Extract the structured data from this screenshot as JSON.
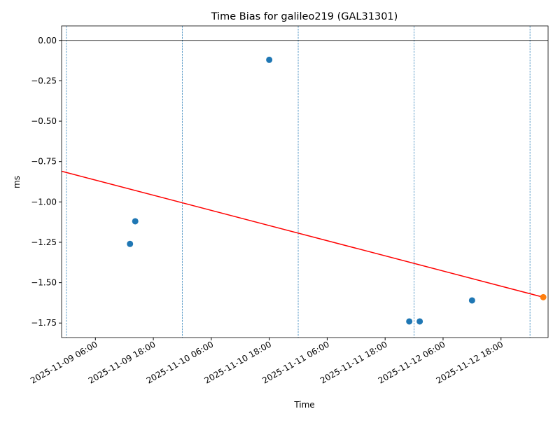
{
  "chart_data": {
    "type": "scatter",
    "title": "Time Bias for galileo219 (GAL31301)",
    "xlabel": "Time",
    "ylabel": "ms",
    "xlim": [
      "2025-11-08 23:00",
      "2025-11-13 03:45"
    ],
    "ylim": [
      -1.84,
      0.09
    ],
    "xticks": [
      "2025-11-09 06:00",
      "2025-11-09 18:00",
      "2025-11-10 06:00",
      "2025-11-10 18:00",
      "2025-11-11 06:00",
      "2025-11-11 18:00",
      "2025-11-12 06:00",
      "2025-11-12 18:00"
    ],
    "yticks": [
      {
        "value": 0,
        "label": "0.00"
      },
      {
        "value": -0.25,
        "label": "−0.25"
      },
      {
        "value": -0.5,
        "label": "−0.50"
      },
      {
        "value": -0.75,
        "label": "−0.75"
      },
      {
        "value": -1,
        "label": "−1.00"
      },
      {
        "value": -1.25,
        "label": "−1.25"
      },
      {
        "value": -1.5,
        "label": "−1.50"
      },
      {
        "value": -1.75,
        "label": "−1.75"
      }
    ],
    "hline": 0,
    "vlines": [
      "2025-11-09 00:00",
      "2025-11-10 00:00",
      "2025-11-11 00:00",
      "2025-11-12 00:00",
      "2025-11-13 00:00"
    ],
    "series": [
      {
        "kind": "scatter",
        "color": "#1f77b4",
        "x": [
          "2025-11-09 13:10",
          "2025-11-09 14:15",
          "2025-11-10 18:00",
          "2025-11-11 23:00",
          "2025-11-12 01:10",
          "2025-11-12 12:00"
        ],
        "values": [
          -1.26,
          -1.12,
          -0.12,
          -1.74,
          -1.74,
          -1.61
        ]
      },
      {
        "kind": "scatter",
        "color": "#ff7f0e",
        "x": [
          "2025-11-13 02:45"
        ],
        "values": [
          -1.59
        ]
      },
      {
        "kind": "line",
        "color": "#ff0000",
        "x": [
          "2025-11-08 23:00",
          "2025-11-13 02:45"
        ],
        "values": [
          -0.81,
          -1.59
        ]
      }
    ]
  }
}
